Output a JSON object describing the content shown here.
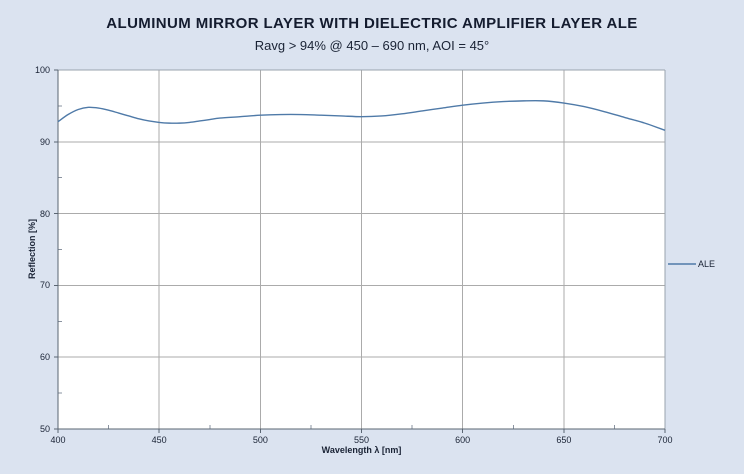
{
  "title": "ALUMINUM MIRROR LAYER WITH DIELECTRIC AMPLIFIER LAYER ALE",
  "subtitle": "Ravg > 94% @ 450 – 690 nm, AOI = 45°",
  "chart_data": {
    "type": "line",
    "title": "ALUMINUM MIRROR LAYER WITH DIELECTRIC AMPLIFIER LAYER ALE",
    "subtitle": "Ravg > 94% @ 450 – 690 nm, AOI = 45°",
    "xlabel": "Wavelength λ [nm]",
    "ylabel": "Reflection [%]",
    "xlim": [
      400,
      700
    ],
    "ylim": [
      50,
      100
    ],
    "x_major_ticks": [
      400,
      450,
      500,
      550,
      600,
      650,
      700
    ],
    "x_minor_step": 25,
    "y_major_ticks": [
      50,
      60,
      70,
      80,
      90,
      100
    ],
    "y_minor_step": 5,
    "grid": true,
    "legend_position": "right",
    "series": [
      {
        "name": "ALE",
        "color": "#4f7aa8",
        "x": [
          400,
          405,
          410,
          415,
          420,
          425,
          430,
          435,
          440,
          445,
          450,
          455,
          460,
          465,
          470,
          475,
          480,
          490,
          500,
          510,
          520,
          530,
          540,
          550,
          560,
          570,
          580,
          590,
          600,
          610,
          620,
          630,
          640,
          650,
          660,
          670,
          680,
          690,
          700
        ],
        "values": [
          92.8,
          93.8,
          94.5,
          94.8,
          94.7,
          94.4,
          94.0,
          93.6,
          93.2,
          92.9,
          92.7,
          92.6,
          92.6,
          92.7,
          92.9,
          93.1,
          93.3,
          93.5,
          93.7,
          93.8,
          93.8,
          93.7,
          93.6,
          93.5,
          93.6,
          93.9,
          94.3,
          94.7,
          95.1,
          95.4,
          95.6,
          95.7,
          95.7,
          95.4,
          94.9,
          94.2,
          93.4,
          92.6,
          91.6
        ]
      }
    ]
  },
  "colors": {
    "background": "#dbe3f0",
    "plot_background": "#ffffff",
    "grid": "#ababab",
    "axis": "#5a6572",
    "frame": "#9aa3ae",
    "series": "#4f7aa8",
    "text": "#1a2335"
  }
}
